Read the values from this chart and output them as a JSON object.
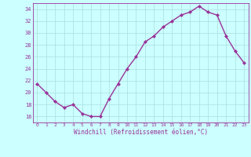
{
  "x": [
    0,
    1,
    2,
    3,
    4,
    5,
    6,
    7,
    8,
    9,
    10,
    11,
    12,
    13,
    14,
    15,
    16,
    17,
    18,
    19,
    20,
    21,
    22,
    23
  ],
  "y": [
    21.5,
    20.0,
    18.5,
    17.5,
    18.0,
    16.5,
    16.0,
    16.0,
    19.0,
    21.5,
    24.0,
    26.0,
    28.5,
    29.5,
    31.0,
    32.0,
    33.0,
    33.5,
    34.5,
    33.5,
    33.0,
    29.5,
    27.0,
    25.0
  ],
  "line_color": "#993399",
  "marker": "D",
  "marker_size": 2.0,
  "bg_color": "#ccffff",
  "grid_color": "#aadddd",
  "xlabel": "Windchill (Refroidissement éolien,°C)",
  "xlabel_color": "#993399",
  "tick_color": "#993399",
  "ylim": [
    15,
    35
  ],
  "xlim": [
    -0.5,
    23.5
  ],
  "yticks": [
    16,
    18,
    20,
    22,
    24,
    26,
    28,
    30,
    32,
    34
  ],
  "xticks": [
    0,
    1,
    2,
    3,
    4,
    5,
    6,
    7,
    8,
    9,
    10,
    11,
    12,
    13,
    14,
    15,
    16,
    17,
    18,
    19,
    20,
    21,
    22,
    23
  ],
  "xtick_labels": [
    "0",
    "1",
    "2",
    "3",
    "4",
    "5",
    "6",
    "7",
    "8",
    "9",
    "10",
    "11",
    "12",
    "13",
    "14",
    "15",
    "16",
    "17",
    "18",
    "19",
    "20",
    "21",
    "22",
    "23"
  ],
  "linewidth": 1.0,
  "spine_color": "#993399"
}
